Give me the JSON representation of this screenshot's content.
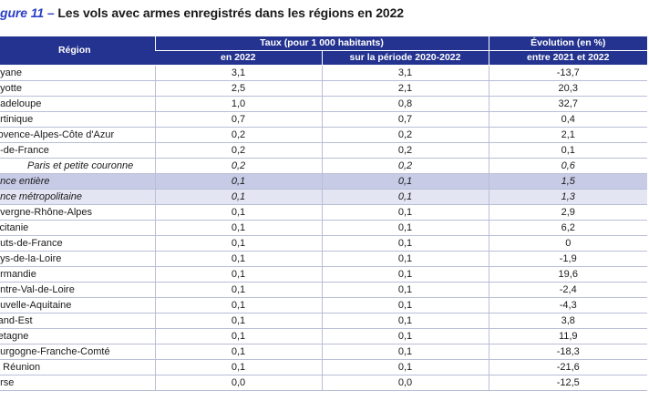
{
  "title": {
    "prefix": "gure 11",
    "dash": " – ",
    "text": "Les vols avec armes enregistrés dans les régions en 2022"
  },
  "headers": {
    "region": "Région",
    "taux": "Taux (pour 1 000 habitants)",
    "taux_2022": "en 2022",
    "taux_periode": "sur la période 2020-2022",
    "evolution_line1": "Évolution (en %)",
    "evolution_line2": "entre 2021 et 2022"
  },
  "rows": [
    {
      "region": "uyane",
      "y2022": "3,1",
      "period": "3,1",
      "evol": "-13,7"
    },
    {
      "region": "ayotte",
      "y2022": "2,5",
      "period": "2,1",
      "evol": "20,3"
    },
    {
      "region": "uadeloupe",
      "y2022": "1,0",
      "period": "0,8",
      "evol": "32,7"
    },
    {
      "region": "artinique",
      "y2022": "0,7",
      "period": "0,7",
      "evol": "0,4"
    },
    {
      "region": "rovence-Alpes-Côte d'Azur",
      "y2022": "0,2",
      "period": "0,2",
      "evol": "2,1"
    },
    {
      "region": "e-de-France",
      "y2022": "0,2",
      "period": "0,2",
      "evol": "0,1"
    },
    {
      "region": "Paris et petite couronne",
      "y2022": "0,2",
      "period": "0,2",
      "evol": "0,6",
      "style": "indent italic"
    },
    {
      "region": "ance entière",
      "y2022": "0,1",
      "period": "0,1",
      "evol": "1,5",
      "style": "italic hl1"
    },
    {
      "region": "ance métropolitaine",
      "y2022": "0,1",
      "period": "0,1",
      "evol": "1,3",
      "style": "italic hl2"
    },
    {
      "region": "uvergne-Rhône-Alpes",
      "y2022": "0,1",
      "period": "0,1",
      "evol": "2,9"
    },
    {
      "region": "ccitanie",
      "y2022": "0,1",
      "period": "0,1",
      "evol": "6,2"
    },
    {
      "region": "auts-de-France",
      "y2022": "0,1",
      "period": "0,1",
      "evol": "0"
    },
    {
      "region": "ays-de-la-Loire",
      "y2022": "0,1",
      "period": "0,1",
      "evol": "-1,9"
    },
    {
      "region": "ormandie",
      "y2022": "0,1",
      "period": "0,1",
      "evol": "19,6"
    },
    {
      "region": "entre-Val-de-Loire",
      "y2022": "0,1",
      "period": "0,1",
      "evol": "-2,4"
    },
    {
      "region": "ouvelle-Aquitaine",
      "y2022": "0,1",
      "period": "0,1",
      "evol": "-4,3"
    },
    {
      "region": "rand-Est",
      "y2022": "0,1",
      "period": "0,1",
      "evol": "3,8"
    },
    {
      "region": "retagne",
      "y2022": "0,1",
      "period": "0,1",
      "evol": "11,9"
    },
    {
      "region": "ourgogne-Franche-Comté",
      "y2022": "0,1",
      "period": "0,1",
      "evol": "-18,3"
    },
    {
      "region": "a Réunion",
      "y2022": "0,1",
      "period": "0,1",
      "evol": "-21,6"
    },
    {
      "region": "orse",
      "y2022": "0,0",
      "period": "0,0",
      "evol": "-12,5"
    }
  ]
}
